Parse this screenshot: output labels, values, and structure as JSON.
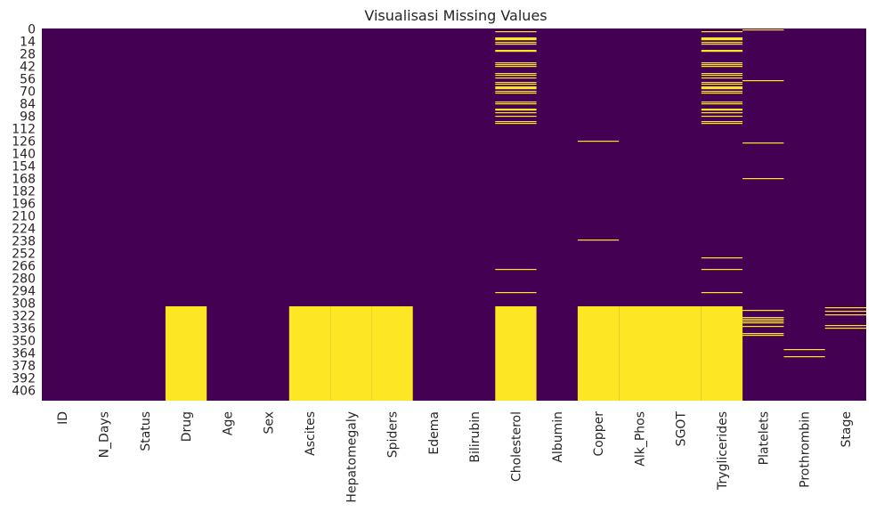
{
  "chart_data": {
    "type": "heatmap",
    "title": "Visualisasi Missing Values",
    "xlabel": "",
    "ylabel": "",
    "colormap": "viridis",
    "colors": {
      "present": "#440154",
      "missing": "#fde725"
    },
    "row_count": 418,
    "y_ticks": [
      0,
      14,
      28,
      42,
      56,
      70,
      84,
      98,
      112,
      126,
      140,
      154,
      168,
      182,
      196,
      210,
      224,
      238,
      252,
      266,
      280,
      294,
      308,
      322,
      336,
      350,
      364,
      378,
      392,
      406
    ],
    "columns": [
      "ID",
      "N_Days",
      "Status",
      "Drug",
      "Age",
      "Sex",
      "Ascites",
      "Hepatomegaly",
      "Spiders",
      "Edema",
      "Bilirubin",
      "Cholesterol",
      "Albumin",
      "Copper",
      "Alk_Phos",
      "SGOT",
      "Tryglicerides",
      "Platelets",
      "Prothrombin",
      "Stage"
    ],
    "missing": {
      "Drug": {
        "ranges": [
          [
            312,
            417
          ]
        ],
        "rows": []
      },
      "Ascites": {
        "ranges": [
          [
            312,
            417
          ]
        ],
        "rows": []
      },
      "Hepatomegaly": {
        "ranges": [
          [
            312,
            417
          ]
        ],
        "rows": []
      },
      "Spiders": {
        "ranges": [
          [
            312,
            417
          ]
        ],
        "rows": []
      },
      "Cholesterol": {
        "ranges": [
          [
            312,
            417
          ]
        ],
        "rows": [
          3,
          10,
          11,
          12,
          15,
          17,
          24,
          25,
          38,
          40,
          42,
          50,
          52,
          55,
          60,
          62,
          65,
          66,
          67,
          70,
          72,
          82,
          84,
          90,
          91,
          94,
          98,
          104,
          106,
          270,
          296
        ]
      },
      "Albumin": {
        "ranges": [],
        "rows": []
      },
      "Copper": {
        "ranges": [
          [
            312,
            417
          ]
        ],
        "rows": [
          126,
          237
        ]
      },
      "Alk_Phos": {
        "ranges": [
          [
            312,
            417
          ]
        ],
        "rows": []
      },
      "SGOT": {
        "ranges": [
          [
            312,
            417
          ]
        ],
        "rows": []
      },
      "Tryglicerides": {
        "ranges": [
          [
            312,
            417
          ]
        ],
        "rows": [
          3,
          10,
          11,
          12,
          15,
          17,
          24,
          25,
          38,
          40,
          42,
          50,
          52,
          55,
          60,
          62,
          65,
          66,
          67,
          70,
          72,
          82,
          84,
          90,
          91,
          94,
          98,
          104,
          106,
          257,
          270,
          296
        ]
      },
      "Platelets": {
        "ranges": [],
        "rows": [
          1,
          58,
          128,
          168,
          316,
          324,
          326,
          328,
          330,
          334,
          342,
          344
        ]
      },
      "Prothrombin": {
        "ranges": [],
        "rows": [
          360,
          368
        ]
      },
      "Stage": {
        "ranges": [],
        "rows": [
          313,
          317,
          321,
          333,
          336
        ]
      }
    }
  }
}
